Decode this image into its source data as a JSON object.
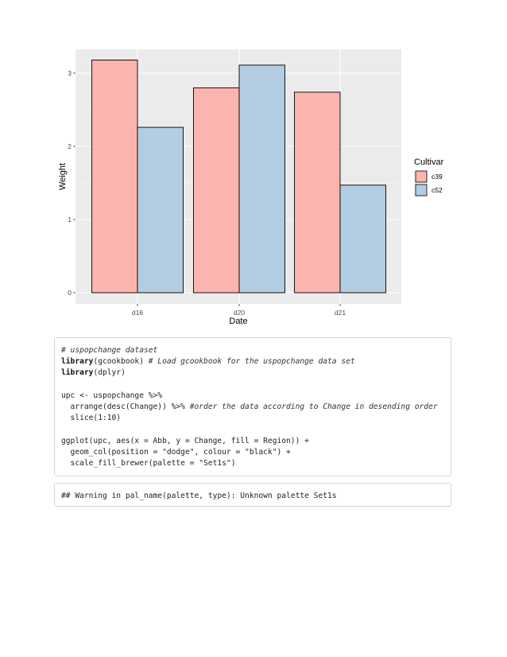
{
  "chart_data": {
    "type": "bar",
    "categories": [
      "d16",
      "d20",
      "d21"
    ],
    "series": [
      {
        "name": "c39",
        "values": [
          3.18,
          2.8,
          2.74
        ],
        "color": "#fbb4ae"
      },
      {
        "name": "c52",
        "values": [
          2.26,
          3.11,
          1.47
        ],
        "color": "#b3cde3"
      }
    ],
    "xlabel": "Date",
    "ylabel": "Weight",
    "ylim": [
      0,
      3.3
    ],
    "yticks": [
      "0",
      "1",
      "2",
      "3"
    ],
    "legend_title": "Cultivar",
    "legend_position": "right",
    "grid": true,
    "panel_color": "#ebebeb"
  },
  "code": {
    "lines": [
      [
        {
          "t": "# uspopchange dataset",
          "c": "cm"
        }
      ],
      [
        {
          "t": "library",
          "c": "kw"
        },
        {
          "t": "(gcookbook) ",
          "c": ""
        },
        {
          "t": "# Load gcookbook for the uspopchange data set",
          "c": "cm"
        }
      ],
      [
        {
          "t": "library",
          "c": "kw"
        },
        {
          "t": "(dplyr)",
          "c": ""
        }
      ],
      [
        {
          "t": "",
          "c": ""
        }
      ],
      [
        {
          "t": "upc <- uspopchange %>%",
          "c": ""
        }
      ],
      [
        {
          "t": "  arrange(desc(Change)) %>% ",
          "c": ""
        },
        {
          "t": "#order the data according to Change in desending order",
          "c": "cm"
        }
      ],
      [
        {
          "t": "  slice(1:10)",
          "c": ""
        }
      ],
      [
        {
          "t": "",
          "c": ""
        }
      ],
      [
        {
          "t": "ggplot(upc, aes(x = Abb, y = Change, fill = Region)) +",
          "c": ""
        }
      ],
      [
        {
          "t": "  geom_col(position = \"dodge\", colour = \"black\") +",
          "c": ""
        }
      ],
      [
        {
          "t": "  scale_fill_brewer(palette = \"Set1s\")",
          "c": ""
        }
      ]
    ]
  },
  "output": {
    "text": "## Warning in pal_name(palette, type): Unknown palette Set1s"
  }
}
